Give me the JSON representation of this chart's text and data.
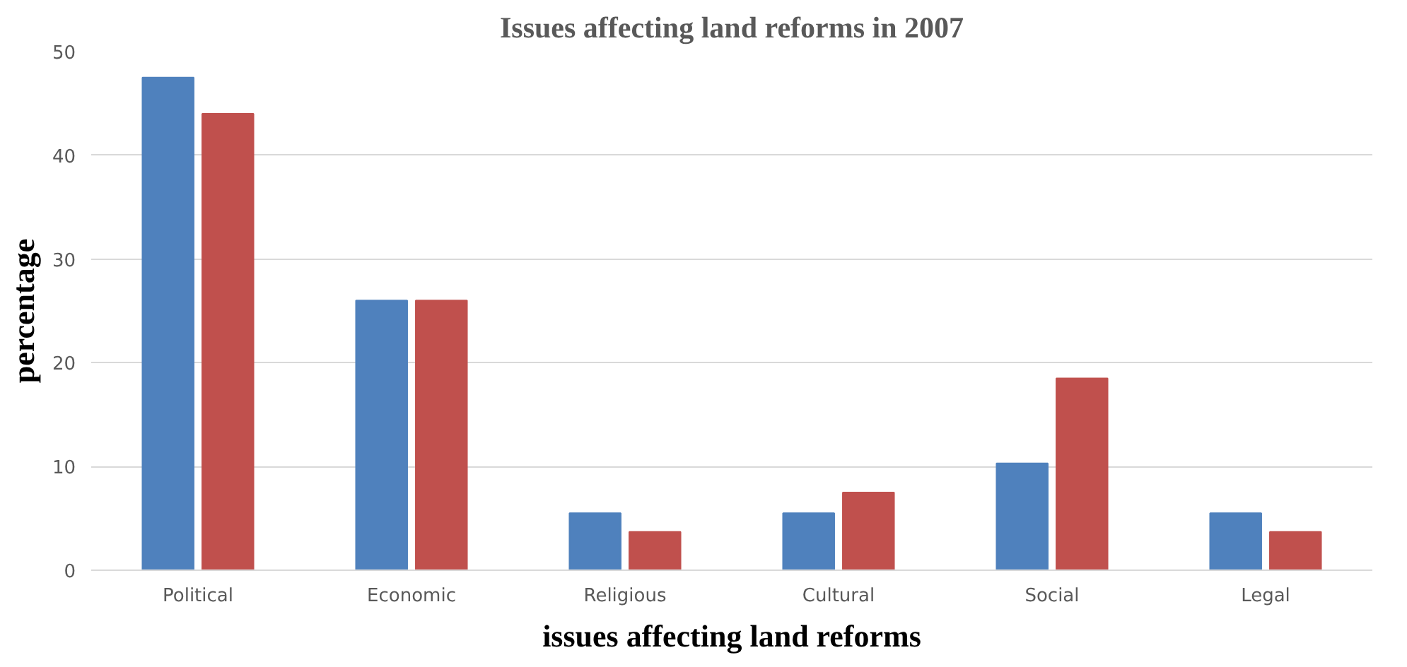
{
  "chart_data": {
    "type": "bar",
    "title": "Issues affecting land reforms in 2007",
    "xlabel": "issues affecting land reforms",
    "ylabel": "percentage",
    "categories": [
      "Political",
      "Economic",
      "Religious",
      "Cultural",
      "Social",
      "Legal"
    ],
    "series": [
      {
        "color": "#4f81bd",
        "values": [
          47.5,
          26,
          5.5,
          5.5,
          10.3,
          5.5
        ]
      },
      {
        "color": "#c0504d",
        "values": [
          44,
          26,
          3.7,
          7.5,
          18.5,
          3.7
        ]
      }
    ],
    "ylim": [
      0,
      50
    ],
    "yticks": [
      0,
      10,
      20,
      30,
      40,
      50
    ],
    "grid": "y"
  }
}
